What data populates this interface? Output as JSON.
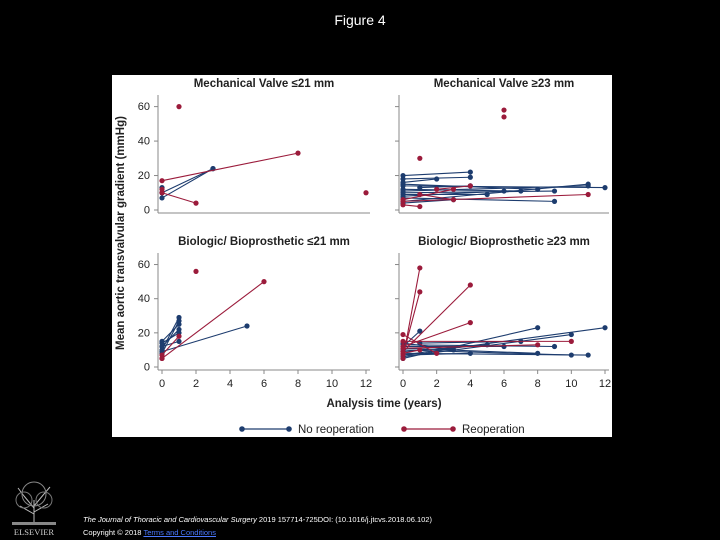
{
  "slide": {
    "title": "Figure 4"
  },
  "chart_data": {
    "type": "line",
    "ylabel": "Mean aortic transvalvular gradient (mmHg)",
    "xlabel": "Analysis time (years)",
    "xlim": [
      0,
      12
    ],
    "ylim": [
      0,
      65
    ],
    "x_ticks": [
      "0",
      "2",
      "4",
      "6",
      "8",
      "10",
      "12"
    ],
    "y_ticks": [
      "0",
      "20",
      "40",
      "60"
    ],
    "colors": {
      "no_reoperation": "#1d3c6e",
      "reoperation": "#9b1b3b"
    },
    "legend": {
      "position": "bottom",
      "no_reoperation": "No reoperation",
      "reoperation": "Reoperation"
    },
    "panels": [
      {
        "title": "Mechanical Valve ≤21 mm",
        "no_reoperation": [
          [
            [
              0,
              7
            ],
            [
              3,
              24
            ]
          ],
          [
            [
              0,
              10
            ],
            [
              3,
              24
            ]
          ],
          [
            [
              0,
              13
            ],
            [
              0,
              10
            ]
          ]
        ],
        "reoperation": [
          [
            [
              0,
              17
            ],
            [
              8,
              33
            ]
          ],
          [
            [
              0,
              10
            ],
            [
              2,
              4
            ]
          ],
          [
            [
              1,
              60
            ]
          ],
          [
            [
              12,
              10
            ]
          ],
          [
            [
              0,
              12
            ]
          ]
        ]
      },
      {
        "title": "Mechanical Valve ≥23 mm",
        "no_reoperation": [
          [
            [
              0,
              20
            ],
            [
              4,
              22
            ]
          ],
          [
            [
              0,
              18
            ],
            [
              4,
              19
            ]
          ],
          [
            [
              0,
              15
            ],
            [
              8,
              12
            ]
          ],
          [
            [
              0,
              14
            ],
            [
              12,
              13
            ]
          ],
          [
            [
              0,
              12
            ],
            [
              7,
              11
            ]
          ],
          [
            [
              0,
              10
            ],
            [
              9,
              11
            ]
          ],
          [
            [
              0,
              9
            ],
            [
              5,
              9
            ]
          ],
          [
            [
              0,
              7
            ],
            [
              9,
              5
            ]
          ],
          [
            [
              0,
              5
            ],
            [
              11,
              15
            ]
          ],
          [
            [
              0,
              4
            ],
            [
              3,
              6
            ]
          ],
          [
            [
              0,
              16
            ],
            [
              2,
              18
            ]
          ],
          [
            [
              0,
              8
            ],
            [
              6,
              11
            ]
          ],
          [
            [
              1,
              13
            ],
            [
              4,
              14
            ]
          ],
          [
            [
              0,
              11
            ],
            [
              11,
              14
            ]
          ]
        ],
        "reoperation": [
          [
            [
              6,
              58
            ]
          ],
          [
            [
              6,
              54
            ]
          ],
          [
            [
              1,
              30
            ]
          ],
          [
            [
              0,
              3
            ],
            [
              1,
              2
            ]
          ],
          [
            [
              0,
              5
            ],
            [
              11,
              9
            ]
          ],
          [
            [
              0,
              6
            ],
            [
              3,
              12
            ]
          ],
          [
            [
              2,
              12
            ],
            [
              4,
              14
            ]
          ],
          [
            [
              1,
              9
            ],
            [
              3,
              6
            ]
          ]
        ]
      },
      {
        "title": "Biologic/ Bioprosthetic ≤21 mm",
        "no_reoperation": [
          [
            [
              0,
              8
            ],
            [
              1,
              27
            ]
          ],
          [
            [
              0,
              10
            ],
            [
              1,
              29
            ]
          ],
          [
            [
              0,
              12
            ],
            [
              1,
              22
            ]
          ],
          [
            [
              0,
              14
            ],
            [
              1,
              20
            ]
          ],
          [
            [
              0,
              9
            ],
            [
              5,
              24
            ]
          ],
          [
            [
              0,
              12
            ],
            [
              1,
              15
            ]
          ],
          [
            [
              0,
              15
            ],
            [
              1,
              25
            ]
          ]
        ],
        "reoperation": [
          [
            [
              0,
              5
            ],
            [
              6,
              50
            ]
          ],
          [
            [
              0,
              7
            ],
            [
              1,
              18
            ]
          ],
          [
            [
              2,
              56
            ]
          ],
          [
            [
              0,
              5
            ]
          ]
        ]
      },
      {
        "title": "Biologic/ Bioprosthetic ≥23 mm",
        "no_reoperation": [
          [
            [
              0,
              5
            ],
            [
              8,
              23
            ]
          ],
          [
            [
              0,
              6
            ],
            [
              10,
              19
            ]
          ],
          [
            [
              0,
              7
            ],
            [
              12,
              23
            ]
          ],
          [
            [
              0,
              8
            ],
            [
              11,
              7
            ]
          ],
          [
            [
              0,
              10
            ],
            [
              10,
              7
            ]
          ],
          [
            [
              0,
              11
            ],
            [
              8,
              8
            ]
          ],
          [
            [
              0,
              12
            ],
            [
              6,
              12
            ]
          ],
          [
            [
              0,
              13
            ],
            [
              9,
              12
            ]
          ],
          [
            [
              0,
              14
            ],
            [
              3,
              10
            ]
          ],
          [
            [
              1,
              21
            ],
            [
              0,
              12
            ]
          ],
          [
            [
              0,
              9
            ],
            [
              5,
              13
            ]
          ],
          [
            [
              0,
              7
            ],
            [
              4,
              8
            ]
          ],
          [
            [
              1,
              14
            ],
            [
              7,
              15
            ]
          ]
        ],
        "reoperation": [
          [
            [
              0,
              5
            ],
            [
              1,
              58
            ]
          ],
          [
            [
              0,
              7
            ],
            [
              1,
              44
            ]
          ],
          [
            [
              0,
              9
            ],
            [
              4,
              48
            ]
          ],
          [
            [
              0,
              12
            ],
            [
              4,
              26
            ]
          ],
          [
            [
              0,
              15
            ],
            [
              10,
              15
            ]
          ],
          [
            [
              0,
              19
            ],
            [
              2,
              8
            ]
          ],
          [
            [
              0,
              11
            ],
            [
              8,
              13
            ]
          ],
          [
            [
              0,
              8
            ],
            [
              1,
              10
            ]
          ]
        ]
      }
    ]
  },
  "caption": {
    "journal": "The Journal of Thoracic and Cardiovascular Surgery",
    "citation": " 2019 157714-725DOI: (10.1016/j.jtcvs.2018.06.102) ",
    "copyright": "Copyright © 2018 ",
    "link": "Terms and Conditions"
  }
}
